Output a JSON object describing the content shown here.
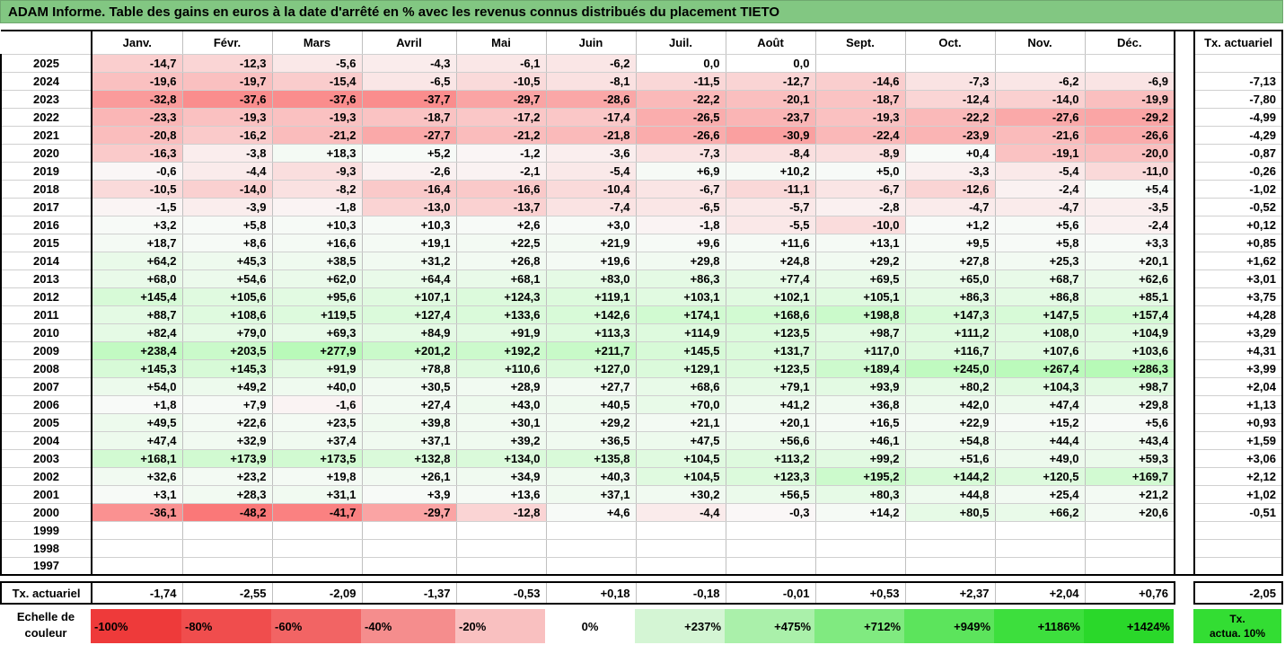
{
  "title": "ADAM Informe. Table des gains en euros à la date d'arrêté en % avec les revenus connus distribués du placement TIETO",
  "months": [
    "Janv.",
    "Févr.",
    "Mars",
    "Avril",
    "Mai",
    "Juin",
    "Juil.",
    "Août",
    "Sept.",
    "Oct.",
    "Nov.",
    "Déc."
  ],
  "tx_header": "Tx. actuariel",
  "rows": [
    {
      "year": "2025",
      "values": [
        "-14,7",
        "-12,3",
        "-5,6",
        "-4,3",
        "-6,1",
        "-6,2",
        "0,0",
        "0,0",
        "",
        "",
        "",
        ""
      ],
      "tx": ""
    },
    {
      "year": "2024",
      "values": [
        "-19,6",
        "-19,7",
        "-15,4",
        "-6,5",
        "-10,5",
        "-8,1",
        "-11,5",
        "-12,7",
        "-14,6",
        "-7,3",
        "-6,2",
        "-6,9"
      ],
      "tx": "-7,13"
    },
    {
      "year": "2023",
      "values": [
        "-32,8",
        "-37,6",
        "-37,6",
        "-37,7",
        "-29,7",
        "-28,6",
        "-22,2",
        "-20,1",
        "-18,7",
        "-12,4",
        "-14,0",
        "-19,9"
      ],
      "tx": "-7,80"
    },
    {
      "year": "2022",
      "values": [
        "-23,3",
        "-19,3",
        "-19,3",
        "-18,7",
        "-17,2",
        "-17,4",
        "-26,5",
        "-23,7",
        "-19,3",
        "-22,2",
        "-27,6",
        "-29,2"
      ],
      "tx": "-4,99"
    },
    {
      "year": "2021",
      "values": [
        "-20,8",
        "-16,2",
        "-21,2",
        "-27,7",
        "-21,2",
        "-21,8",
        "-26,6",
        "-30,9",
        "-22,4",
        "-23,9",
        "-21,6",
        "-26,6"
      ],
      "tx": "-4,29"
    },
    {
      "year": "2020",
      "values": [
        "-16,3",
        "-3,8",
        "+18,3",
        "+5,2",
        "-1,2",
        "-3,6",
        "-7,3",
        "-8,4",
        "-8,9",
        "+0,4",
        "-19,1",
        "-20,0"
      ],
      "tx": "-0,87"
    },
    {
      "year": "2019",
      "values": [
        "-0,6",
        "-4,4",
        "-9,3",
        "-2,6",
        "-2,1",
        "-5,4",
        "+6,9",
        "+10,2",
        "+5,0",
        "-3,3",
        "-5,4",
        "-11,0"
      ],
      "tx": "-0,26"
    },
    {
      "year": "2018",
      "values": [
        "-10,5",
        "-14,0",
        "-8,2",
        "-16,4",
        "-16,6",
        "-10,4",
        "-6,7",
        "-11,1",
        "-6,7",
        "-12,6",
        "-2,4",
        "+5,4"
      ],
      "tx": "-1,02"
    },
    {
      "year": "2017",
      "values": [
        "-1,5",
        "-3,9",
        "-1,8",
        "-13,0",
        "-13,7",
        "-7,4",
        "-6,5",
        "-5,7",
        "-2,8",
        "-4,7",
        "-4,7",
        "-3,5"
      ],
      "tx": "-0,52"
    },
    {
      "year": "2016",
      "values": [
        "+3,2",
        "+5,8",
        "+10,3",
        "+10,3",
        "+2,6",
        "+3,0",
        "-1,8",
        "-5,5",
        "-10,0",
        "+1,2",
        "+5,6",
        "-2,4"
      ],
      "tx": "+0,12"
    },
    {
      "year": "2015",
      "values": [
        "+18,7",
        "+8,6",
        "+16,6",
        "+19,1",
        "+22,5",
        "+21,9",
        "+9,6",
        "+11,6",
        "+13,1",
        "+9,5",
        "+5,8",
        "+3,3"
      ],
      "tx": "+0,85"
    },
    {
      "year": "2014",
      "values": [
        "+64,2",
        "+45,3",
        "+38,5",
        "+31,2",
        "+26,8",
        "+19,6",
        "+29,8",
        "+24,8",
        "+29,2",
        "+27,8",
        "+25,3",
        "+20,1"
      ],
      "tx": "+1,62"
    },
    {
      "year": "2013",
      "values": [
        "+68,0",
        "+54,6",
        "+62,0",
        "+64,4",
        "+68,1",
        "+83,0",
        "+86,3",
        "+77,4",
        "+69,5",
        "+65,0",
        "+68,7",
        "+62,6"
      ],
      "tx": "+3,01"
    },
    {
      "year": "2012",
      "values": [
        "+145,4",
        "+105,6",
        "+95,6",
        "+107,1",
        "+124,3",
        "+119,1",
        "+103,1",
        "+102,1",
        "+105,1",
        "+86,3",
        "+86,8",
        "+85,1"
      ],
      "tx": "+3,75"
    },
    {
      "year": "2011",
      "values": [
        "+88,7",
        "+108,6",
        "+119,5",
        "+127,4",
        "+133,6",
        "+142,6",
        "+174,1",
        "+168,6",
        "+198,8",
        "+147,3",
        "+147,5",
        "+157,4"
      ],
      "tx": "+4,28"
    },
    {
      "year": "2010",
      "values": [
        "+82,4",
        "+79,0",
        "+69,3",
        "+84,9",
        "+91,9",
        "+113,3",
        "+114,9",
        "+123,5",
        "+98,7",
        "+111,2",
        "+108,0",
        "+104,9"
      ],
      "tx": "+3,29"
    },
    {
      "year": "2009",
      "values": [
        "+238,4",
        "+203,5",
        "+277,9",
        "+201,2",
        "+192,2",
        "+211,7",
        "+145,5",
        "+131,7",
        "+117,0",
        "+116,7",
        "+107,6",
        "+103,6"
      ],
      "tx": "+4,31"
    },
    {
      "year": "2008",
      "values": [
        "+145,3",
        "+145,3",
        "+91,9",
        "+78,8",
        "+110,6",
        "+127,0",
        "+129,1",
        "+123,5",
        "+189,4",
        "+245,0",
        "+267,4",
        "+286,3"
      ],
      "tx": "+3,99"
    },
    {
      "year": "2007",
      "values": [
        "+54,0",
        "+49,2",
        "+40,0",
        "+30,5",
        "+28,9",
        "+27,7",
        "+68,6",
        "+79,1",
        "+93,9",
        "+80,2",
        "+104,3",
        "+98,7"
      ],
      "tx": "+2,04"
    },
    {
      "year": "2006",
      "values": [
        "+1,8",
        "+7,9",
        "-1,6",
        "+27,4",
        "+43,0",
        "+40,5",
        "+70,0",
        "+41,2",
        "+36,8",
        "+42,0",
        "+47,4",
        "+29,8"
      ],
      "tx": "+1,13"
    },
    {
      "year": "2005",
      "values": [
        "+49,5",
        "+22,6",
        "+23,5",
        "+39,8",
        "+30,1",
        "+29,2",
        "+21,1",
        "+20,1",
        "+16,5",
        "+22,9",
        "+15,2",
        "+5,6"
      ],
      "tx": "+0,93"
    },
    {
      "year": "2004",
      "values": [
        "+47,4",
        "+32,9",
        "+37,4",
        "+37,1",
        "+39,2",
        "+36,5",
        "+47,5",
        "+56,6",
        "+46,1",
        "+54,8",
        "+44,4",
        "+43,4"
      ],
      "tx": "+1,59"
    },
    {
      "year": "2003",
      "values": [
        "+168,1",
        "+173,9",
        "+173,5",
        "+132,8",
        "+134,0",
        "+135,8",
        "+104,5",
        "+113,2",
        "+99,2",
        "+51,6",
        "+49,0",
        "+59,3"
      ],
      "tx": "+3,06"
    },
    {
      "year": "2002",
      "values": [
        "+32,6",
        "+23,2",
        "+19,8",
        "+26,1",
        "+34,9",
        "+40,3",
        "+104,5",
        "+123,3",
        "+195,2",
        "+144,2",
        "+120,5",
        "+169,7"
      ],
      "tx": "+2,12"
    },
    {
      "year": "2001",
      "values": [
        "+3,1",
        "+28,3",
        "+31,1",
        "+3,9",
        "+13,6",
        "+37,1",
        "+30,2",
        "+56,5",
        "+80,3",
        "+44,8",
        "+25,4",
        "+21,2"
      ],
      "tx": "+1,02"
    },
    {
      "year": "2000",
      "values": [
        "-36,1",
        "-48,2",
        "-41,7",
        "-29,7",
        "-12,8",
        "+4,6",
        "-4,4",
        "-0,3",
        "+14,2",
        "+80,5",
        "+66,2",
        "+20,6"
      ],
      "tx": "-0,51"
    },
    {
      "year": "1999",
      "values": [
        "",
        "",
        "",
        "",
        "",
        "",
        "",
        "",
        "",
        "",
        "",
        ""
      ],
      "tx": ""
    },
    {
      "year": "1998",
      "values": [
        "",
        "",
        "",
        "",
        "",
        "",
        "",
        "",
        "",
        "",
        "",
        ""
      ],
      "tx": ""
    },
    {
      "year": "1997",
      "values": [
        "",
        "",
        "",
        "",
        "",
        "",
        "",
        "",
        "",
        "",
        "",
        ""
      ],
      "tx": ""
    }
  ],
  "bottom": {
    "label": "Tx. actuariel",
    "values": [
      "-1,74",
      "-2,55",
      "-2,09",
      "-1,37",
      "-0,53",
      "+0,18",
      "-0,18",
      "-0,01",
      "+0,53",
      "+2,37",
      "+2,04",
      "+0,76"
    ],
    "tx": "-2,05"
  },
  "legend": {
    "label_line1": "Echelle de",
    "label_line2": "couleur",
    "cells": [
      {
        "text": "-100%",
        "color": "#ee3a3a",
        "align": "left"
      },
      {
        "text": "-80%",
        "color": "#f04d4d",
        "align": "left"
      },
      {
        "text": "-60%",
        "color": "#f26464",
        "align": "left"
      },
      {
        "text": "-40%",
        "color": "#f58d8d",
        "align": "left"
      },
      {
        "text": "-20%",
        "color": "#f9c0c0",
        "align": "left"
      },
      {
        "text": "0%",
        "color": "#ffffff",
        "align": "center"
      },
      {
        "text": "+237%",
        "color": "#d4f5d4",
        "align": "right"
      },
      {
        "text": "+475%",
        "color": "#aaf0aa",
        "align": "right"
      },
      {
        "text": "+712%",
        "color": "#80ea80",
        "align": "right"
      },
      {
        "text": "+949%",
        "color": "#5ce45c",
        "align": "right"
      },
      {
        "text": "+1186%",
        "color": "#3ddf3d",
        "align": "right"
      },
      {
        "text": "+1424%",
        "color": "#2ad82a",
        "align": "right"
      }
    ],
    "tx_line1": "Tx.",
    "tx_line2": "actua. 10%",
    "tx_color": "#33dd33"
  },
  "colors": {
    "title_bg": "#82c782",
    "negative_strong": "#f47b7b",
    "positive_strong": "#aef0ae"
  }
}
